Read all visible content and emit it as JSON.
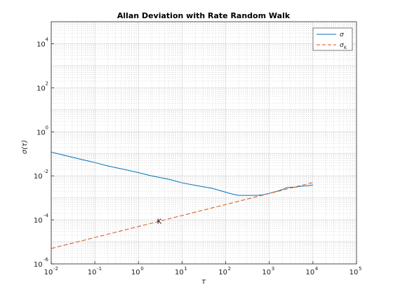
{
  "chart_data": {
    "type": "line",
    "title": "Allan Deviation with Rate Random Walk",
    "xlabel": "τ",
    "ylabel": "σ(τ)",
    "xscale": "log",
    "yscale": "log",
    "xlim": [
      0.01,
      100000
    ],
    "ylim": [
      1e-06,
      100000
    ],
    "x_ticks": [
      {
        "base": "10",
        "exp": "-2",
        "value": 0.01
      },
      {
        "base": "10",
        "exp": "-1",
        "value": 0.1
      },
      {
        "base": "10",
        "exp": "0",
        "value": 1
      },
      {
        "base": "10",
        "exp": "1",
        "value": 10
      },
      {
        "base": "10",
        "exp": "2",
        "value": 100
      },
      {
        "base": "10",
        "exp": "3",
        "value": 1000
      },
      {
        "base": "10",
        "exp": "4",
        "value": 10000
      },
      {
        "base": "10",
        "exp": "5",
        "value": 100000
      }
    ],
    "y_ticks": [
      {
        "base": "10",
        "exp": "-6",
        "value": 1e-06
      },
      {
        "base": "10",
        "exp": "-4",
        "value": 0.0001
      },
      {
        "base": "10",
        "exp": "-2",
        "value": 0.01
      },
      {
        "base": "10",
        "exp": "0",
        "value": 1
      },
      {
        "base": "10",
        "exp": "2",
        "value": 100
      },
      {
        "base": "10",
        "exp": "4",
        "value": 10000
      }
    ],
    "grid": true,
    "minor_grid": true,
    "legend_position": "top-right",
    "series": [
      {
        "name": "σ",
        "legend_main": "σ",
        "legend_sub": "",
        "color": "#0072bd",
        "style": "solid",
        "x": [
          0.01,
          0.02,
          0.05,
          0.1,
          0.2,
          0.5,
          1,
          2,
          5,
          10,
          20,
          50,
          100,
          150,
          200,
          300,
          500,
          700,
          1000,
          1500,
          2000,
          2500,
          3000,
          4000,
          5000,
          7000,
          10000
        ],
        "y": [
          0.12,
          0.085,
          0.055,
          0.04,
          0.028,
          0.019,
          0.014,
          0.01,
          0.007,
          0.0048,
          0.0037,
          0.0027,
          0.0018,
          0.00145,
          0.0013,
          0.0013,
          0.0013,
          0.00135,
          0.0016,
          0.002,
          0.0024,
          0.0029,
          0.003,
          0.0031,
          0.0033,
          0.0035,
          0.0038
        ]
      },
      {
        "name": "σK",
        "legend_main": "σ",
        "legend_sub": "K",
        "color": "#d95319",
        "style": "dashed",
        "x": [
          0.01,
          10000
        ],
        "y": [
          5e-06,
          0.005
        ]
      }
    ],
    "annotation": {
      "text": "K",
      "x": 3,
      "y": 9e-05
    }
  }
}
